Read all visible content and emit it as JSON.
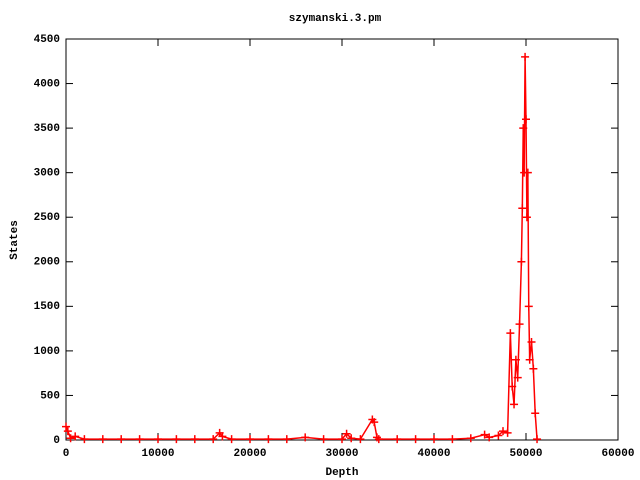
{
  "chart_data": {
    "type": "linespoints",
    "title": "szymanski.3.pm",
    "x_label": "Depth",
    "y_label": "States",
    "x": [
      0,
      200,
      500,
      1000,
      2000,
      4000,
      6000,
      8000,
      10000,
      12000,
      14000,
      16000,
      16700,
      17000,
      18000,
      20000,
      22000,
      24000,
      26000,
      28000,
      30000,
      30500,
      31000,
      32000,
      33300,
      33500,
      33800,
      34000,
      36000,
      38000,
      40000,
      42000,
      44000,
      45500,
      46000,
      47000,
      47500,
      48000,
      48300,
      48500,
      48700,
      48900,
      49100,
      49300,
      49500,
      49600,
      49700,
      49800,
      49900,
      50000,
      50100,
      50200,
      50300,
      50400,
      50600,
      50800,
      51000,
      51200
    ],
    "values": [
      150,
      100,
      20,
      40,
      10,
      10,
      10,
      10,
      10,
      10,
      10,
      10,
      80,
      40,
      10,
      10,
      10,
      10,
      30,
      10,
      10,
      70,
      20,
      10,
      230,
      200,
      30,
      10,
      10,
      10,
      10,
      10,
      20,
      60,
      30,
      50,
      100,
      80,
      1200,
      600,
      400,
      900,
      700,
      1300,
      2000,
      2600,
      3500,
      3000,
      4300,
      3600,
      2500,
      3000,
      1500,
      900,
      1100,
      800,
      300,
      10
    ],
    "color": "#ff0000",
    "marker": "+",
    "xlim": [
      0,
      60000
    ],
    "xticks": [
      0,
      10000,
      20000,
      30000,
      40000,
      50000,
      60000
    ],
    "ylim": [
      0,
      4500
    ],
    "yticks": [
      0,
      500,
      1000,
      1500,
      2000,
      2500,
      3000,
      3500,
      4000,
      4500
    ]
  }
}
